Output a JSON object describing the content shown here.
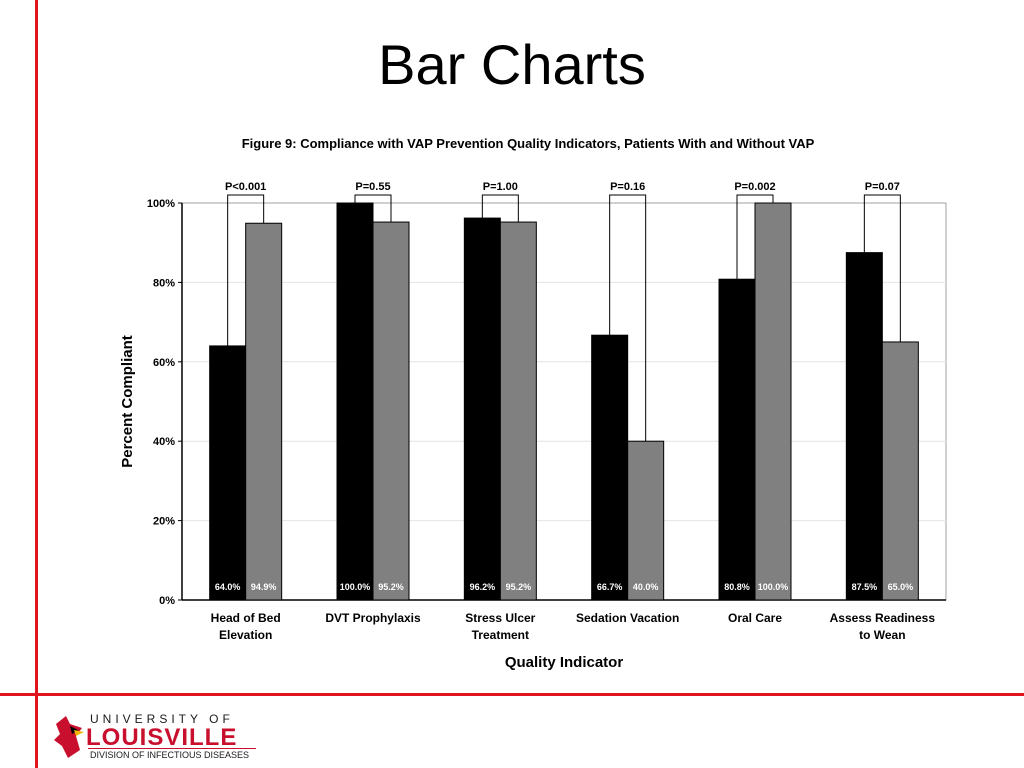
{
  "slide": {
    "title": "Bar Charts"
  },
  "logo": {
    "top_text": "UNIVERSITY OF",
    "main_text": "LOUISVILLE",
    "sub_text": "DIVISION OF INFECTIOUS DISEASES",
    "icon": "cardinal-bird-icon"
  },
  "colors": {
    "accent": "#e0141e",
    "series_with_vap": "#000000",
    "series_without_vap": "#808080"
  },
  "chart_data": {
    "type": "bar",
    "title": "Figure 9:  Compliance with VAP Prevention Quality Indicators,  Patients With and Without VAP",
    "xlabel": "Quality Indicator",
    "ylabel": "Percent Compliant",
    "ylim": [
      0,
      100
    ],
    "yticks": [
      "0%",
      "20%",
      "40%",
      "60%",
      "80%",
      "100%"
    ],
    "grid": true,
    "categories": [
      [
        "Head of Bed",
        "Elevation"
      ],
      [
        "DVT Prophylaxis"
      ],
      [
        "Stress Ulcer",
        "Treatment"
      ],
      [
        "Sedation Vacation"
      ],
      [
        "Oral Care"
      ],
      [
        "Assess Readiness",
        "to Wean"
      ]
    ],
    "series": [
      {
        "color": "#000000",
        "values": [
          64.0,
          100.0,
          96.2,
          66.7,
          80.8,
          87.5
        ],
        "labels": [
          "64.0%",
          "100.0%",
          "96.2%",
          "66.7%",
          "80.8%",
          "87.5%"
        ]
      },
      {
        "color": "#808080",
        "values": [
          94.9,
          95.2,
          95.2,
          40.0,
          100.0,
          65.0
        ],
        "labels": [
          "94.9%",
          "95.2%",
          "95.2%",
          "40.0%",
          "100.0%",
          "65.0%"
        ]
      }
    ],
    "pvalues": [
      "P<0.001",
      "P=0.55",
      "P=1.00",
      "P=0.16",
      "P=0.002",
      "P=0.07"
    ]
  }
}
